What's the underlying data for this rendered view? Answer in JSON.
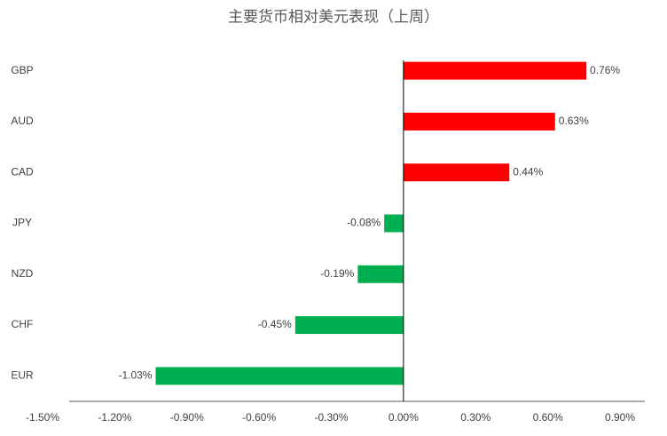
{
  "chart_data": {
    "type": "bar",
    "orientation": "horizontal",
    "title": "主要货币相对美元表现（上周）",
    "categories": [
      "GBP",
      "AUD",
      "CAD",
      "JPY",
      "NZD",
      "CHF",
      "EUR"
    ],
    "values": [
      0.76,
      0.63,
      0.44,
      -0.08,
      -0.19,
      -0.45,
      -1.03
    ],
    "value_labels": [
      "0.76%",
      "0.63%",
      "0.44%",
      "-0.08%",
      "-0.19%",
      "-0.45%",
      "-1.03%"
    ],
    "colors": [
      "#ff0000",
      "#ff0000",
      "#ff0000",
      "#00b050",
      "#00b050",
      "#00b050",
      "#00b050"
    ],
    "xlim": [
      -1.5,
      0.9
    ],
    "xticks": [
      {
        "value": -1.5,
        "label": "-1.50%"
      },
      {
        "value": -1.2,
        "label": "-1.20%"
      },
      {
        "value": -0.9,
        "label": "-0.90%"
      },
      {
        "value": -0.6,
        "label": "-0.60%"
      },
      {
        "value": -0.3,
        "label": "-0.30%"
      },
      {
        "value": 0,
        "label": "0.00%"
      },
      {
        "value": 0.3,
        "label": "0.30%"
      },
      {
        "value": 0.6,
        "label": "0.60%"
      },
      {
        "value": 0.9,
        "label": "0.90%"
      }
    ]
  }
}
